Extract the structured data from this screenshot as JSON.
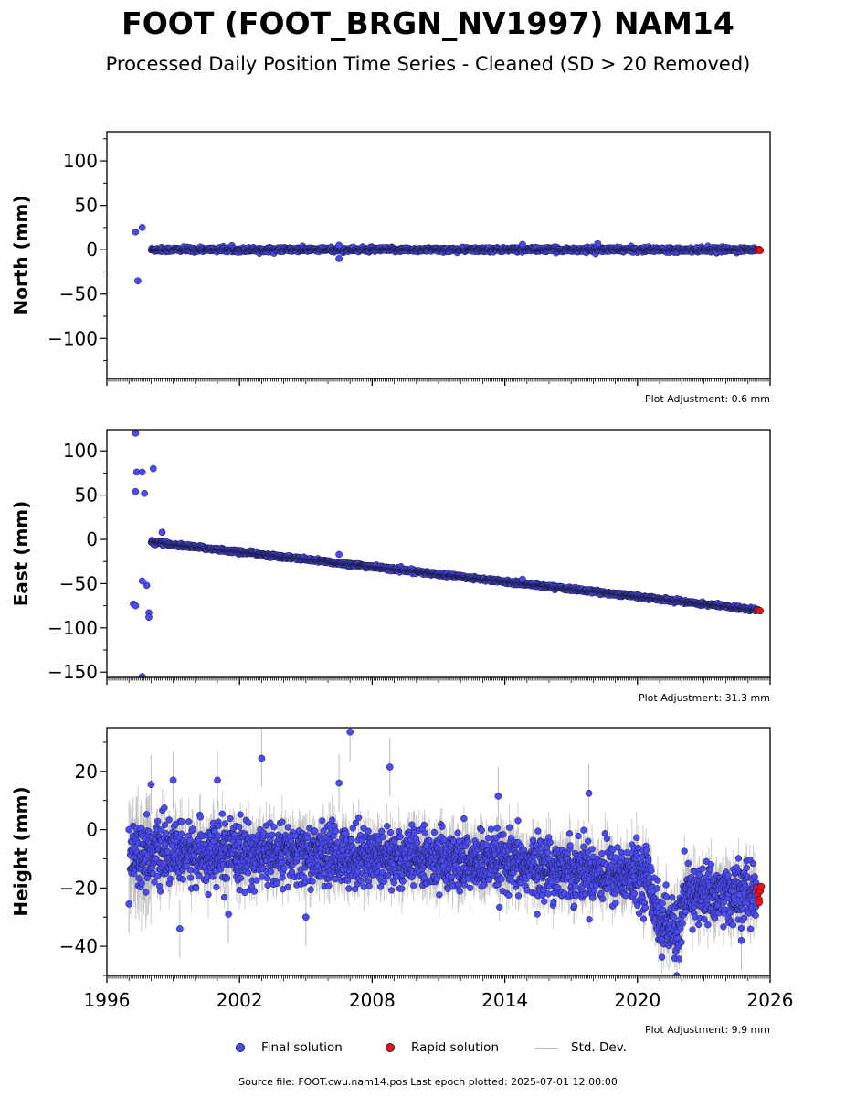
{
  "title": "FOOT (FOOT_BRGN_NV1997) NAM14",
  "subtitle": "Processed Daily Position Time Series - Cleaned (SD > 20 Removed)",
  "footer": "Source file: FOOT.cwu.nam14.pos  Last epoch plotted: 2025-07-01 12:00:00",
  "legend": {
    "final_label": "Final solution",
    "rapid_label": "Rapid solution",
    "std_label": "Std. Dev."
  },
  "colors": {
    "final": "#4b4bf5",
    "rapid": "#e8101a",
    "std": "#bbbbbb",
    "edge": "#1a1a3a"
  },
  "chart_data": [
    {
      "type": "scatter",
      "name": "north",
      "ylabel": "North (mm)",
      "adjustment_text": "Plot Adjustment: 0.6 mm",
      "xlim": [
        1996,
        2026
      ],
      "ylim": [
        -145,
        133
      ],
      "yticks": [
        -100,
        -50,
        0,
        50,
        100
      ],
      "trend": [
        [
          1998.0,
          0
        ],
        [
          2025.5,
          0
        ]
      ],
      "noise": 1.8,
      "early_spread": 8,
      "outliers": [
        [
          1997.4,
          -35
        ],
        [
          1997.6,
          25
        ],
        [
          1997.3,
          20
        ],
        [
          2006.5,
          -10
        ],
        [
          2006.5,
          5
        ],
        [
          2014.8,
          6
        ],
        [
          2018.2,
          7
        ]
      ],
      "rapid": [
        [
          2025.45,
          -0.5
        ],
        [
          2025.5,
          0.3
        ],
        [
          2025.55,
          -0.8
        ]
      ]
    },
    {
      "type": "scatter",
      "name": "east",
      "ylabel": "East (mm)",
      "adjustment_text": "Plot Adjustment: 31.3 mm",
      "xlim": [
        1996,
        2026
      ],
      "ylim": [
        -156,
        124
      ],
      "yticks": [
        -150,
        -100,
        -50,
        0,
        50,
        100
      ],
      "trend": [
        [
          1998.0,
          -3
        ],
        [
          2025.5,
          -80
        ]
      ],
      "noise": 1.5,
      "early_spread": 12,
      "outliers": [
        [
          1997.3,
          120
        ],
        [
          1997.35,
          76
        ],
        [
          1997.6,
          76
        ],
        [
          1997.3,
          54
        ],
        [
          1997.7,
          52
        ],
        [
          1998.1,
          80
        ],
        [
          1997.2,
          -73
        ],
        [
          1997.3,
          -75
        ],
        [
          1997.9,
          -83
        ],
        [
          1997.9,
          -88
        ],
        [
          1997.6,
          -47
        ],
        [
          1997.8,
          -52
        ],
        [
          1997.6,
          -155
        ],
        [
          2006.5,
          -17
        ],
        [
          1998.5,
          8
        ],
        [
          2014.8,
          -45
        ]
      ],
      "rapid": [
        [
          2025.45,
          -79.5
        ],
        [
          2025.5,
          -80.3
        ],
        [
          2025.55,
          -80.8
        ]
      ]
    },
    {
      "type": "scatter",
      "name": "height",
      "ylabel": "Height (mm)",
      "adjustment_text": "Plot Adjustment: 9.9 mm",
      "xlim": [
        1996,
        2026
      ],
      "ylim": [
        -50,
        35
      ],
      "yticks": [
        -40,
        -20,
        0,
        20
      ],
      "xticks": [
        1996,
        2002,
        2008,
        2014,
        2020,
        2026
      ],
      "trend": [
        [
          1997.0,
          -8
        ],
        [
          2008.0,
          -9
        ],
        [
          2016.0,
          -13
        ],
        [
          2020.5,
          -16
        ],
        [
          2021.0,
          -32
        ],
        [
          2021.8,
          -35
        ],
        [
          2022.3,
          -22
        ],
        [
          2025.5,
          -22
        ]
      ],
      "noise": 7,
      "early_spread": 7,
      "outliers": [
        [
          2007.0,
          33.5
        ],
        [
          2003.0,
          24.5
        ],
        [
          2008.8,
          21.5
        ],
        [
          1999.0,
          17
        ],
        [
          2006.5,
          16
        ],
        [
          1998.0,
          15.5
        ],
        [
          2017.8,
          12.5
        ],
        [
          2013.7,
          11.5
        ],
        [
          1999.3,
          -34
        ],
        [
          2001.5,
          -29
        ],
        [
          2005.0,
          -30
        ],
        [
          2024.7,
          -38
        ],
        [
          1997.0,
          -25.5
        ],
        [
          1997.0,
          0
        ],
        [
          2001.0,
          17
        ]
      ],
      "rapid": [
        [
          2025.4,
          -20
        ],
        [
          2025.45,
          -22
        ],
        [
          2025.5,
          -24
        ],
        [
          2025.55,
          -21
        ],
        [
          2025.6,
          -19.5
        ],
        [
          2025.5,
          -25
        ]
      ]
    }
  ]
}
